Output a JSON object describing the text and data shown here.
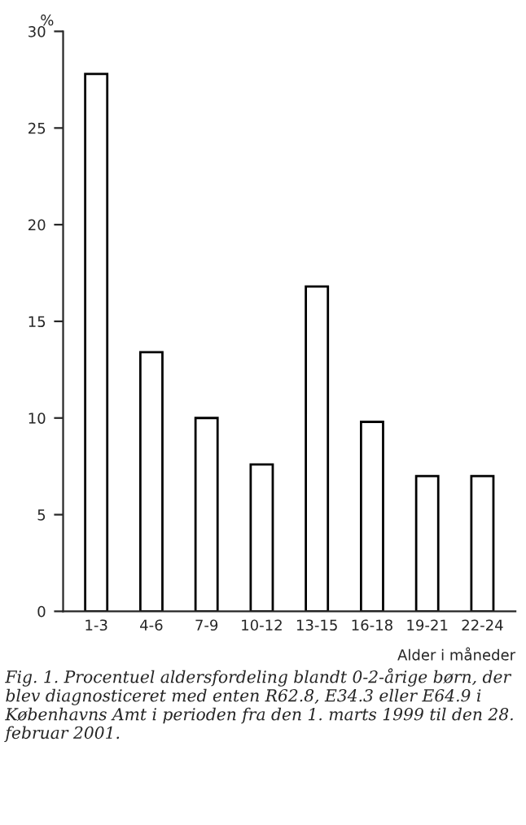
{
  "chart_data": {
    "type": "bar",
    "ylabel": "%",
    "xlabel": "Alder i måneder",
    "categories": [
      "1-3",
      "4-6",
      "7-9",
      "10-12",
      "13-15",
      "16-18",
      "19-21",
      "22-24"
    ],
    "values": [
      27.8,
      13.4,
      10.0,
      7.6,
      16.8,
      9.8,
      7.0,
      7.0
    ],
    "color": "#ffffff",
    "ylim": [
      0,
      30
    ],
    "yticks": [
      0,
      5,
      10,
      15,
      20,
      25,
      30
    ],
    "grid": false,
    "annotations": [
      "Fig. 1. Procentuel aldersfordeling blandt 0-2-årige børn, der blev diagnosticeret med enten R62.8, E34.3 eller E64.9 i Københavns Amt i perioden fra den 1. marts 1999 til den 28. februar 2001."
    ]
  }
}
